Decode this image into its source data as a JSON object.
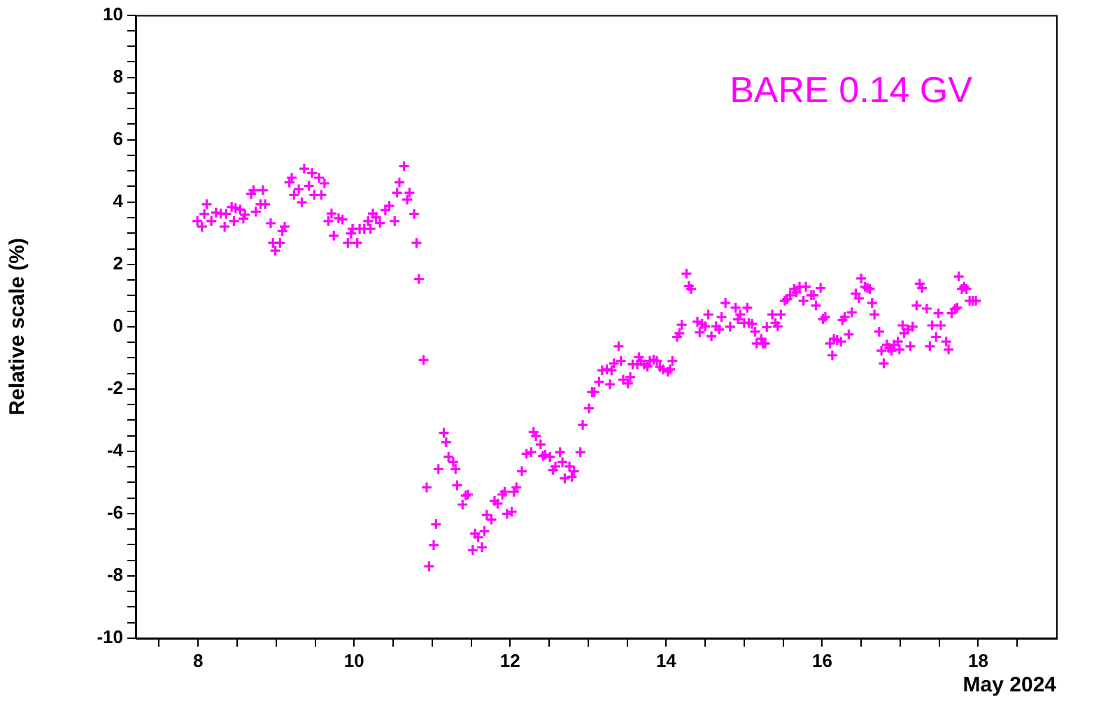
{
  "chart_data": {
    "type": "scatter",
    "xlabel": "May 2024",
    "ylabel": "Relative scale (%)",
    "legend": "top right",
    "marker": "cross",
    "xlim": [
      7.2,
      19
    ],
    "ylim": [
      -10,
      10
    ],
    "xticks": [
      {
        "value": 7.5,
        "label": null
      },
      8,
      {
        "value": 8.5,
        "label": null
      },
      {
        "value": 9,
        "label": null
      },
      {
        "value": 9.5,
        "label": null
      },
      10,
      {
        "value": 10.5,
        "label": null
      },
      {
        "value": 11,
        "label": null
      },
      {
        "value": 11.5,
        "label": null
      },
      12,
      {
        "value": 12.5,
        "label": null
      },
      {
        "value": 13,
        "label": null
      },
      {
        "value": 13.5,
        "label": null
      },
      14,
      {
        "value": 14.5,
        "label": null
      },
      {
        "value": 15,
        "label": null
      },
      {
        "value": 15.5,
        "label": null
      },
      16,
      {
        "value": 16.5,
        "label": null
      },
      {
        "value": 17,
        "label": null
      },
      {
        "value": 17.5,
        "label": null
      },
      18,
      {
        "value": 18.5,
        "label": null
      }
    ],
    "yticks": [
      -10,
      {
        "value": -9.5,
        "label": null
      },
      {
        "value": -9,
        "label": null
      },
      {
        "value": -8.5,
        "label": null
      },
      -8,
      {
        "value": -7.5,
        "label": null
      },
      {
        "value": -7,
        "label": null
      },
      {
        "value": -6.5,
        "label": null
      },
      -6,
      {
        "value": -5.5,
        "label": null
      },
      {
        "value": -5,
        "label": null
      },
      {
        "value": -4.5,
        "label": null
      },
      -4,
      {
        "value": -3.5,
        "label": null
      },
      {
        "value": -3,
        "label": null
      },
      {
        "value": -2.5,
        "label": null
      },
      -2,
      {
        "value": -1.5,
        "label": null
      },
      {
        "value": -1,
        "label": null
      },
      {
        "value": -0.5,
        "label": null
      },
      0,
      {
        "value": 0.5,
        "label": null
      },
      {
        "value": 1,
        "label": null
      },
      {
        "value": 1.5,
        "label": null
      },
      2,
      {
        "value": 2.5,
        "label": null
      },
      {
        "value": 3,
        "label": null
      },
      {
        "value": 3.5,
        "label": null
      },
      4,
      {
        "value": 4.5,
        "label": null
      },
      {
        "value": 5,
        "label": null
      },
      {
        "value": 5.5,
        "label": null
      },
      6,
      {
        "value": 6.5,
        "label": null
      },
      {
        "value": 7,
        "label": null
      },
      {
        "value": 7.5,
        "label": null
      },
      8,
      {
        "value": 8.5,
        "label": null
      },
      {
        "value": 9,
        "label": null
      },
      {
        "value": 9.5,
        "label": null
      },
      10
    ],
    "series": [
      {
        "name": "BARE 0.14 GV",
        "color": "#ff00ff",
        "x": [
          7.99,
          8.05,
          8.08,
          8.11,
          8.17,
          8.23,
          8.29,
          8.34,
          8.36,
          8.43,
          8.46,
          8.48,
          8.54,
          8.58,
          8.6,
          8.68,
          8.71,
          8.74,
          8.8,
          8.83,
          8.86,
          8.93,
          8.96,
          8.99,
          9.05,
          9.08,
          9.11,
          9.17,
          9.2,
          9.23,
          9.29,
          9.33,
          9.36,
          9.42,
          9.46,
          9.49,
          9.55,
          9.58,
          9.62,
          9.67,
          9.71,
          9.74,
          9.8,
          9.85,
          9.92,
          9.96,
          9.98,
          10.04,
          10.07,
          10.13,
          10.18,
          10.21,
          10.24,
          10.28,
          10.33,
          10.4,
          10.45,
          10.52,
          10.55,
          10.58,
          10.64,
          10.68,
          10.71,
          10.77,
          10.8,
          10.83,
          10.89,
          10.93,
          10.96,
          11.02,
          11.05,
          11.08,
          11.15,
          11.18,
          11.21,
          11.27,
          11.3,
          11.32,
          11.39,
          11.43,
          11.46,
          11.52,
          11.55,
          11.59,
          11.64,
          11.67,
          11.7,
          11.76,
          11.8,
          11.84,
          11.9,
          11.93,
          11.96,
          12.02,
          12.05,
          12.08,
          12.15,
          12.21,
          12.27,
          12.3,
          12.33,
          12.39,
          12.42,
          12.45,
          12.51,
          12.55,
          12.58,
          12.64,
          12.67,
          12.7,
          12.76,
          12.79,
          12.82,
          12.9,
          12.93,
          13.01,
          13.05,
          13.08,
          13.14,
          13.18,
          13.24,
          13.28,
          13.3,
          13.33,
          13.39,
          13.42,
          13.45,
          13.51,
          13.54,
          13.57,
          13.63,
          13.65,
          13.68,
          13.72,
          13.76,
          13.79,
          13.84,
          13.88,
          13.92,
          13.96,
          14.02,
          14.05,
          14.08,
          14.14,
          14.17,
          14.2,
          14.26,
          14.29,
          14.32,
          14.4,
          14.43,
          14.46,
          14.5,
          14.54,
          14.58,
          14.64,
          14.68,
          14.71,
          14.76,
          14.82,
          14.89,
          14.92,
          14.95,
          15.0,
          15.04,
          15.06,
          15.1,
          15.14,
          15.16,
          15.22,
          15.24,
          15.27,
          15.29,
          15.36,
          15.4,
          15.43,
          15.47,
          15.52,
          15.55,
          15.59,
          15.64,
          15.67,
          15.71,
          15.76,
          15.79,
          15.86,
          15.89,
          15.92,
          15.98,
          16.01,
          16.04,
          16.1,
          16.13,
          16.15,
          16.19,
          16.24,
          16.26,
          16.29,
          16.34,
          16.38,
          16.43,
          16.47,
          16.5,
          16.55,
          16.58,
          16.61,
          16.64,
          16.67,
          16.73,
          16.76,
          16.79,
          16.83,
          16.86,
          16.89,
          16.92,
          16.97,
          16.99,
          17.03,
          17.05,
          17.1,
          17.13,
          17.16,
          17.21,
          17.25,
          17.28,
          17.34,
          17.38,
          17.41,
          17.46,
          17.49,
          17.52,
          17.59,
          17.62,
          17.66,
          17.7,
          17.73,
          17.75,
          17.79,
          17.82,
          17.85,
          17.89,
          17.93,
          17.97
        ],
        "values": [
          3.39,
          3.21,
          3.62,
          3.93,
          3.39,
          3.66,
          3.63,
          3.21,
          3.62,
          3.84,
          3.39,
          3.81,
          3.76,
          3.47,
          3.59,
          4.26,
          4.38,
          3.69,
          3.93,
          4.38,
          3.93,
          3.32,
          2.69,
          2.44,
          2.69,
          3.07,
          3.21,
          4.63,
          4.78,
          4.23,
          4.41,
          3.99,
          5.07,
          4.52,
          4.93,
          4.23,
          4.78,
          4.23,
          4.6,
          3.39,
          3.63,
          2.92,
          3.48,
          3.44,
          2.69,
          2.99,
          3.14,
          2.69,
          3.14,
          3.14,
          3.39,
          3.14,
          3.63,
          3.51,
          3.33,
          3.74,
          3.88,
          3.39,
          4.3,
          4.63,
          5.15,
          4.08,
          4.3,
          3.62,
          2.69,
          1.53,
          -1.07,
          -5.16,
          -7.69,
          -7.01,
          -6.34,
          -4.57,
          -3.41,
          -3.71,
          -4.18,
          -4.35,
          -4.57,
          -5.09,
          -5.71,
          -5.42,
          -5.39,
          -7.17,
          -6.64,
          -6.76,
          -7.08,
          -6.56,
          -6.04,
          -6.19,
          -5.59,
          -5.68,
          -5.39,
          -5.3,
          -6.01,
          -5.94,
          -5.3,
          -5.16,
          -4.64,
          -4.08,
          -4.03,
          -3.38,
          -3.51,
          -3.78,
          -4.15,
          -4.11,
          -4.18,
          -4.6,
          -4.49,
          -4.03,
          -4.35,
          -4.87,
          -4.49,
          -4.82,
          -4.64,
          -4.03,
          -3.15,
          -2.62,
          -2.1,
          -2.1,
          -1.77,
          -1.4,
          -1.37,
          -1.85,
          -1.4,
          -1.18,
          -0.63,
          -1.1,
          -1.7,
          -1.82,
          -1.62,
          -1.21,
          -1.21,
          -0.98,
          -1.1,
          -1.21,
          -1.28,
          -1.1,
          -1.06,
          -1.1,
          -1.29,
          -1.37,
          -1.44,
          -1.37,
          -1.1,
          -0.33,
          -0.21,
          0.06,
          1.7,
          1.31,
          1.21,
          0.16,
          -0.18,
          0.09,
          0.01,
          0.39,
          -0.31,
          0.01,
          -0.09,
          0.31,
          0.76,
          0.0,
          0.61,
          0.24,
          0.39,
          0.12,
          0.61,
          0.12,
          0.09,
          -0.16,
          -0.54,
          -0.39,
          -0.54,
          -0.54,
          -0.01,
          0.39,
          0.12,
          0.01,
          0.39,
          0.83,
          0.88,
          1.01,
          1.21,
          1.1,
          1.28,
          0.83,
          1.28,
          1.01,
          1.01,
          0.68,
          1.24,
          0.24,
          0.31,
          -0.54,
          -0.92,
          -0.39,
          -0.43,
          -0.48,
          0.21,
          0.31,
          -0.25,
          0.46,
          1.06,
          0.91,
          1.55,
          1.28,
          1.24,
          1.21,
          0.76,
          0.39,
          -0.16,
          -0.77,
          -1.18,
          -0.58,
          -0.68,
          -0.77,
          -0.58,
          -0.48,
          -0.73,
          0.04,
          -0.21,
          -0.09,
          -0.63,
          0.0,
          0.68,
          1.38,
          1.24,
          0.58,
          -0.63,
          0.04,
          -0.33,
          0.43,
          0.04,
          -0.48,
          -0.73,
          0.43,
          0.57,
          0.61,
          1.61,
          1.21,
          1.28,
          1.21,
          0.83,
          0.83,
          0.83
        ]
      }
    ]
  }
}
